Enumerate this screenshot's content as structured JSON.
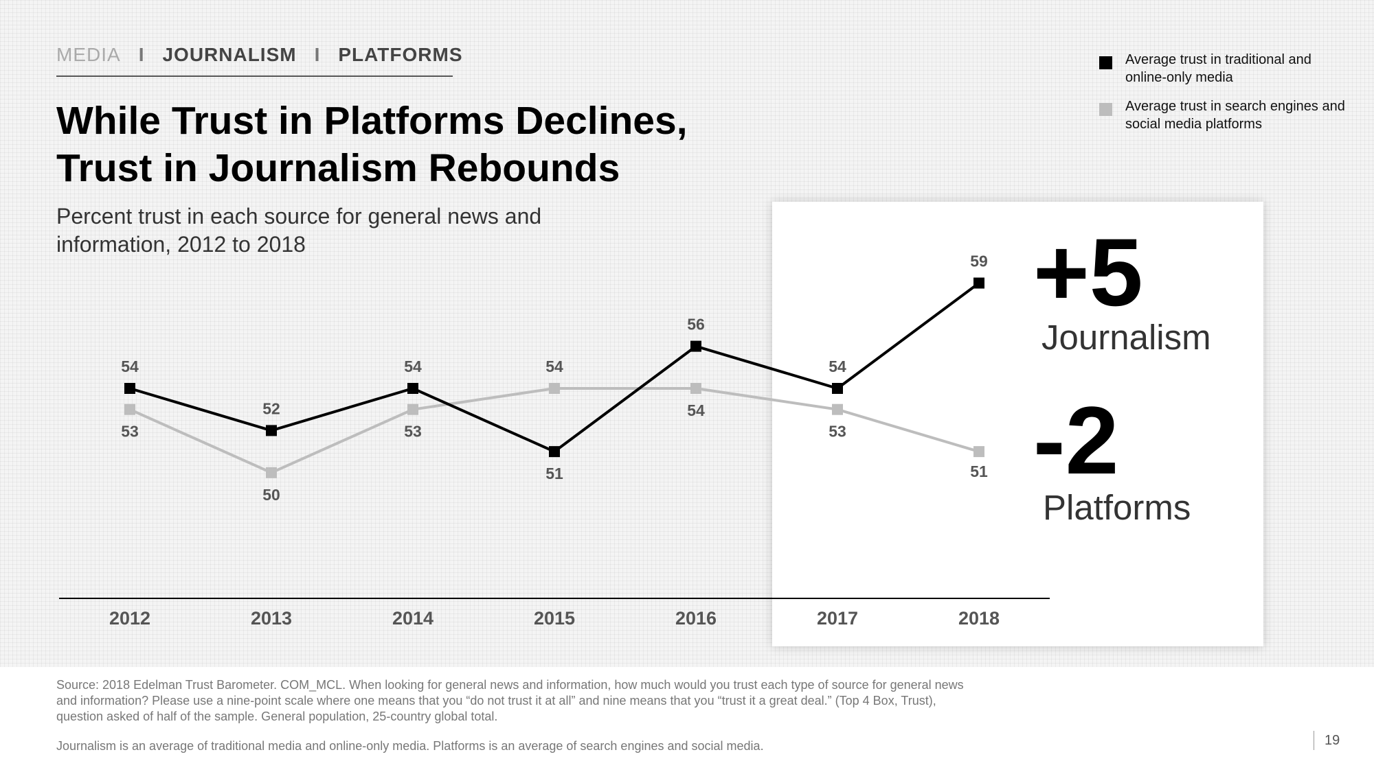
{
  "breadcrumb": {
    "items": [
      "MEDIA",
      "JOURNALISM",
      "PLATFORMS"
    ],
    "separator": "I"
  },
  "title": "While Trust in Platforms Declines, Trust in Journalism Rebounds",
  "subtitle": "Percent trust in each source for general news and information, 2012 to 2018",
  "legend": [
    {
      "label": "Average trust in traditional and online-only media",
      "color": "#000000"
    },
    {
      "label": "Average trust in search engines and social media platforms",
      "color": "#bdbdbd"
    }
  ],
  "highlights": {
    "journalism": {
      "value": "+5",
      "label": "Journalism"
    },
    "platforms": {
      "value": "-2",
      "label": "Platforms"
    }
  },
  "chart_data": {
    "type": "line",
    "x": [
      "2012",
      "2013",
      "2014",
      "2015",
      "2016",
      "2017",
      "2018"
    ],
    "series": [
      {
        "name": "Average trust in traditional and online-only media",
        "color": "#000000",
        "values": [
          54,
          52,
          54,
          51,
          56,
          54,
          59
        ]
      },
      {
        "name": "Average trust in search engines and social media platforms",
        "color": "#bdbdbd",
        "values": [
          53,
          50,
          53,
          54,
          54,
          53,
          51
        ]
      }
    ],
    "grid": false,
    "data_labels": true
  },
  "footer": {
    "source": "Source: 2018 Edelman Trust Barometer. COM_MCL. When looking for general news and information, how much would you trust each type of source for general news and information? Please use a nine-point scale where one means that you “do not trust it at all” and nine means that you “trust it a great deal.” (Top 4 Box, Trust), question asked of half of the sample. General population, 25-country global total.",
    "definition": "Journalism is an average of traditional media and online-only media. Platforms is an average of search engines and social media.",
    "page_number": "19"
  }
}
